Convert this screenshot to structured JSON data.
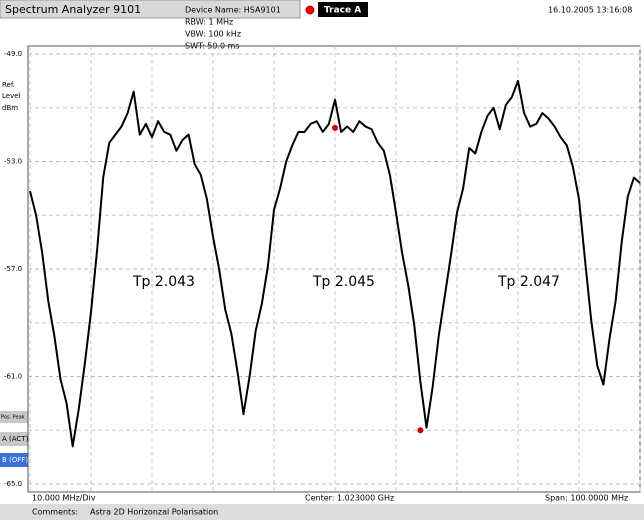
{
  "header": {
    "app_title": "Spectrum Analyzer 9101",
    "device": "Device Name: HSA9101",
    "trace": "Trace A",
    "datetime": "16.10.2005   13:16:08",
    "settings": [
      "RBW:  1 MHz",
      "VBW:  100 kHz",
      "SWT:  50.0 ms"
    ]
  },
  "side_buttons": [
    "Pos. Peak",
    "A (ACT)",
    "B (OFF)"
  ],
  "chart_data": {
    "type": "line",
    "y_label": [
      "Ref.",
      "Level",
      "dBm"
    ],
    "color": "#000000",
    "x": [
      973,
      974,
      975,
      976,
      977,
      978,
      979,
      980,
      981,
      982,
      983,
      984,
      985,
      986,
      987,
      988,
      989,
      990,
      991,
      992,
      993,
      994,
      995,
      996,
      997,
      998,
      999,
      1000,
      1001,
      1002,
      1003,
      1004,
      1005,
      1006,
      1007,
      1008,
      1009,
      1010,
      1011,
      1012,
      1013,
      1014,
      1015,
      1016,
      1017,
      1018,
      1019,
      1020,
      1021,
      1022,
      1023,
      1024,
      1025,
      1026,
      1027,
      1028,
      1029,
      1030,
      1031,
      1032,
      1033,
      1034,
      1035,
      1036,
      1037,
      1038,
      1039,
      1040,
      1041,
      1042,
      1043,
      1044,
      1045,
      1046,
      1047,
      1048,
      1049,
      1050,
      1051,
      1052,
      1053,
      1054,
      1055,
      1056,
      1057,
      1058,
      1059,
      1060,
      1061,
      1062,
      1063,
      1064,
      1065,
      1066,
      1067,
      1068,
      1069,
      1070,
      1071,
      1072,
      1073
    ],
    "values": [
      -54.1,
      -55.0,
      -56.4,
      -58.2,
      -59.5,
      -61.1,
      -62.0,
      -63.6,
      -62.2,
      -60.5,
      -58.6,
      -56.3,
      -53.6,
      -52.3,
      -52.0,
      -51.7,
      -51.2,
      -50.4,
      -52.0,
      -51.6,
      -52.1,
      -51.5,
      -51.9,
      -52.0,
      -52.6,
      -52.2,
      -52.0,
      -53.1,
      -53.5,
      -54.4,
      -55.8,
      -57.0,
      -58.5,
      -59.4,
      -60.8,
      -62.4,
      -61.0,
      -59.3,
      -58.3,
      -56.9,
      -54.8,
      -54.0,
      -53.0,
      -52.4,
      -51.9,
      -51.9,
      -51.6,
      -51.5,
      -51.9,
      -51.6,
      -50.7,
      -51.9,
      -51.7,
      -51.9,
      -51.5,
      -51.7,
      -51.8,
      -52.3,
      -52.6,
      -53.5,
      -54.9,
      -56.4,
      -57.6,
      -59.1,
      -61.2,
      -62.9,
      -61.4,
      -59.5,
      -58.0,
      -56.5,
      -54.9,
      -54.0,
      -52.5,
      -52.7,
      -51.9,
      -51.3,
      -51.0,
      -51.8,
      -50.9,
      -50.6,
      -50.0,
      -51.2,
      -51.7,
      -51.6,
      -51.2,
      -51.4,
      -51.7,
      -52.1,
      -52.4,
      -53.2,
      -54.4,
      -56.7,
      -58.9,
      -60.6,
      -61.3,
      -59.6,
      -58.2,
      -56.0,
      -54.3,
      -53.6,
      -53.8
    ],
    "markers": {
      "color": "#cc0000",
      "x": [
        1023,
        1037
      ],
      "values": [
        -51.75,
        -63.0
      ]
    },
    "annotations": [
      "Tp 2.043",
      "Tp 2.045",
      "Tp 2.047"
    ],
    "xlim": [
      973,
      1073
    ],
    "xticks": [
      973,
      983,
      993,
      1003,
      1013,
      1023,
      1033,
      1043,
      1053,
      1063,
      1073
    ],
    "ylim": [
      -65,
      -49
    ],
    "yticks": [
      {
        "value": -49,
        "label": "-49.0"
      },
      {
        "value": -53,
        "label": "-53.0"
      },
      {
        "value": -57,
        "label": "-57.0"
      },
      {
        "value": -61,
        "label": "-61.0"
      },
      {
        "value": -65,
        "label": "-65.0"
      }
    ],
    "yminor": [
      -51,
      -55,
      -59,
      -63
    ],
    "grid": true,
    "x_div": "10.000 MHz/Div",
    "center": "Center: 1.023000 GHz",
    "span": "Span: 100.0000  MHz"
  },
  "comments": {
    "label": "Comments:",
    "text": "Astra 2D Horizonzal Polarisation"
  }
}
